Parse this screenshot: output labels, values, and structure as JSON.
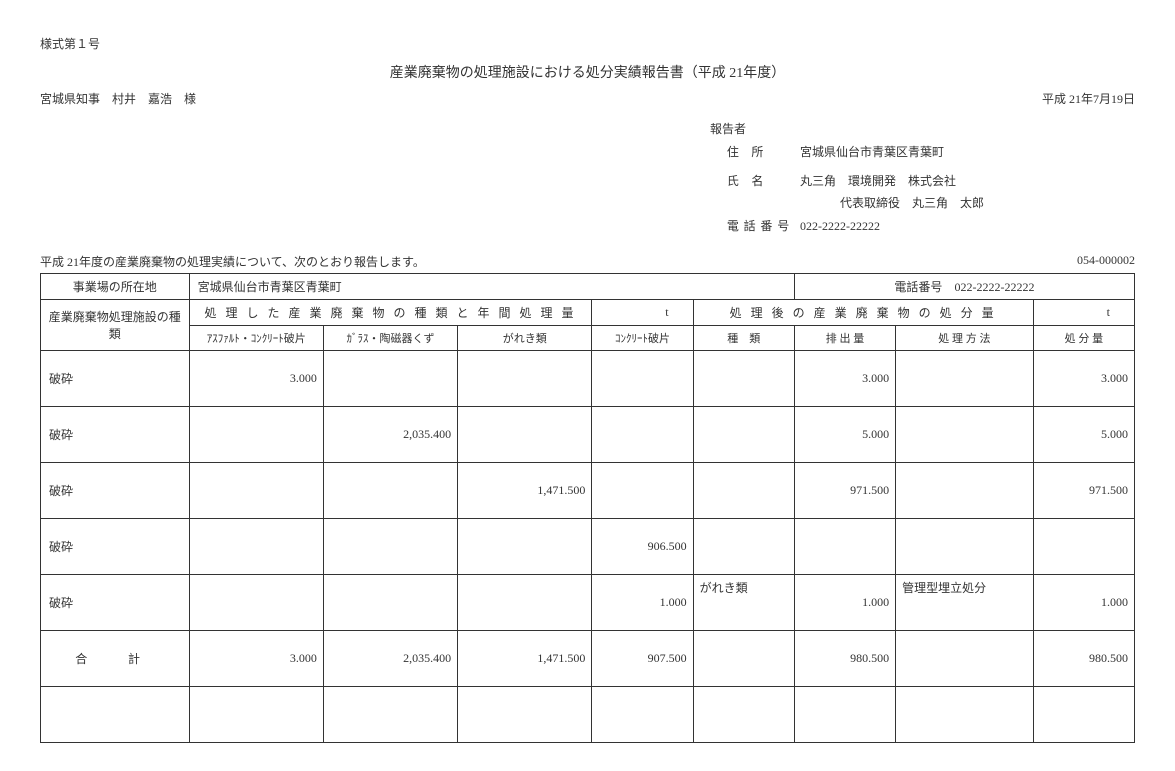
{
  "form_number": "様式第１号",
  "title": "産業廃棄物の処理施設における処分実績報告書（平成 21年度）",
  "addressee": "宮城県知事　村井　嘉浩　様",
  "date": "平成 21年7月19日",
  "reporter": {
    "heading": "報告者",
    "address_label": "住 所",
    "address": "宮城県仙台市青葉区青葉町",
    "name_label": "氏 名",
    "name": "丸三角　環境開発　株式会社",
    "rep_title": "代表取締役　丸三角　太郎",
    "phone_label": "電話番号",
    "phone": "022-2222-22222"
  },
  "intro": "平成 21年度の産業廃棄物の処理実績について、次のとおり報告します。",
  "doc_id": "054-000002",
  "location": {
    "label": "事業場の所在地",
    "value": "宮城県仙台市青葉区青葉町",
    "phone_label": "電話番号",
    "phone": "022-2222-22222"
  },
  "headers": {
    "facility_type": "産業廃棄物処理施設の種類",
    "processed_group": "処 理 し た 産 業 廃 棄 物 の 種 類 と 年 間 処 理 量",
    "processed_unit": "t",
    "after_group": "処 理 後 の 産 業 廃 棄 物 の 処 分 量",
    "after_unit": "t",
    "col1": "ｱｽﾌｧﾙﾄ・ｺﾝｸﾘｰﾄ破片",
    "col2": "ｶﾞﾗｽ・陶磁器くず",
    "col3": "がれき類",
    "col4": "ｺﾝｸﾘｰﾄ破片",
    "col5": "種　類",
    "col6": "排 出 量",
    "col7": "処 理 方 法",
    "col8": "処 分 量"
  },
  "rows": [
    {
      "label": "破砕",
      "c1": "3.000",
      "c2": "",
      "c3": "",
      "c4": "",
      "c5": "",
      "c6": "3.000",
      "c7": "",
      "c8": "3.000"
    },
    {
      "label": "破砕",
      "c1": "",
      "c2": "2,035.400",
      "c3": "",
      "c4": "",
      "c5": "",
      "c6": "5.000",
      "c7": "",
      "c8": "5.000"
    },
    {
      "label": "破砕",
      "c1": "",
      "c2": "",
      "c3": "1,471.500",
      "c4": "",
      "c5": "",
      "c6": "971.500",
      "c7": "",
      "c8": "971.500"
    },
    {
      "label": "破砕",
      "c1": "",
      "c2": "",
      "c3": "",
      "c4": "906.500",
      "c5": "",
      "c6": "",
      "c7": "",
      "c8": ""
    },
    {
      "label": "破砕",
      "c1": "",
      "c2": "",
      "c3": "",
      "c4": "1.000",
      "c5": "がれき類",
      "c6": "1.000",
      "c7": "管理型埋立処分",
      "c8": "1.000"
    }
  ],
  "total": {
    "label": "合　計",
    "c1": "3.000",
    "c2": "2,035.400",
    "c3": "1,471.500",
    "c4": "907.500",
    "c5": "",
    "c6": "980.500",
    "c7": "",
    "c8": "980.500"
  }
}
